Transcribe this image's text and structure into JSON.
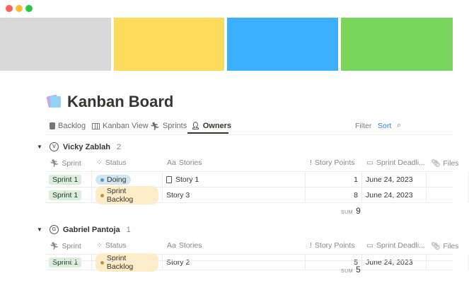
{
  "window": {
    "controls": [
      "#ff5f57",
      "#febc2e",
      "#28c840"
    ]
  },
  "cover": {
    "colors": [
      "#d9d9d9",
      "#fddc5c",
      "#3ab0ff",
      "#7ad65b"
    ]
  },
  "page": {
    "title": "Kanban Board",
    "icon": "sticky-notes-icon"
  },
  "tabs": [
    {
      "label": "Backlog",
      "icon": "clipboard-icon"
    },
    {
      "label": "Kanban View",
      "icon": "columns-icon"
    },
    {
      "label": "Sprints",
      "icon": "runner-icon"
    },
    {
      "label": "Owners",
      "icon": "person-icon",
      "active": true
    }
  ],
  "toolbar": {
    "filter": "Filter",
    "sort": "Sort",
    "search_icon": "search-icon",
    "accent": "#2383e2"
  },
  "columns": [
    "Sprint",
    "Status",
    "Stories",
    "Story Points",
    "Sprint Deadli...",
    "Files"
  ],
  "groups": [
    {
      "initial": "V",
      "name": "Vicky Zablah",
      "count": "2",
      "sum_label": "SUM",
      "sum": "9",
      "rows": [
        {
          "sprint": "Sprint 1",
          "status": "Doing",
          "status_bg": "#d3e5ef",
          "status_dot": "#5a97c0",
          "story": "Story 1",
          "has_doc": true,
          "points": "1",
          "deadline": "June 24, 2023"
        },
        {
          "sprint": "Sprint 1",
          "status": "Sprint Backlog",
          "status_bg": "#fdecc8",
          "status_dot": "#c29243",
          "story": "Story 3",
          "points": "8",
          "deadline": "June 24, 2023"
        }
      ]
    },
    {
      "initial": "G",
      "name": "Gabriel Pantoja",
      "count": "1",
      "sum_label": "SUM",
      "sum": "5",
      "rows": [
        {
          "sprint": "Sprint 1",
          "status": "Sprint Backlog",
          "status_bg": "#fdecc8",
          "status_dot": "#c29243",
          "story": "Story 2",
          "points": "5",
          "deadline": "June 24, 2023"
        }
      ]
    }
  ]
}
